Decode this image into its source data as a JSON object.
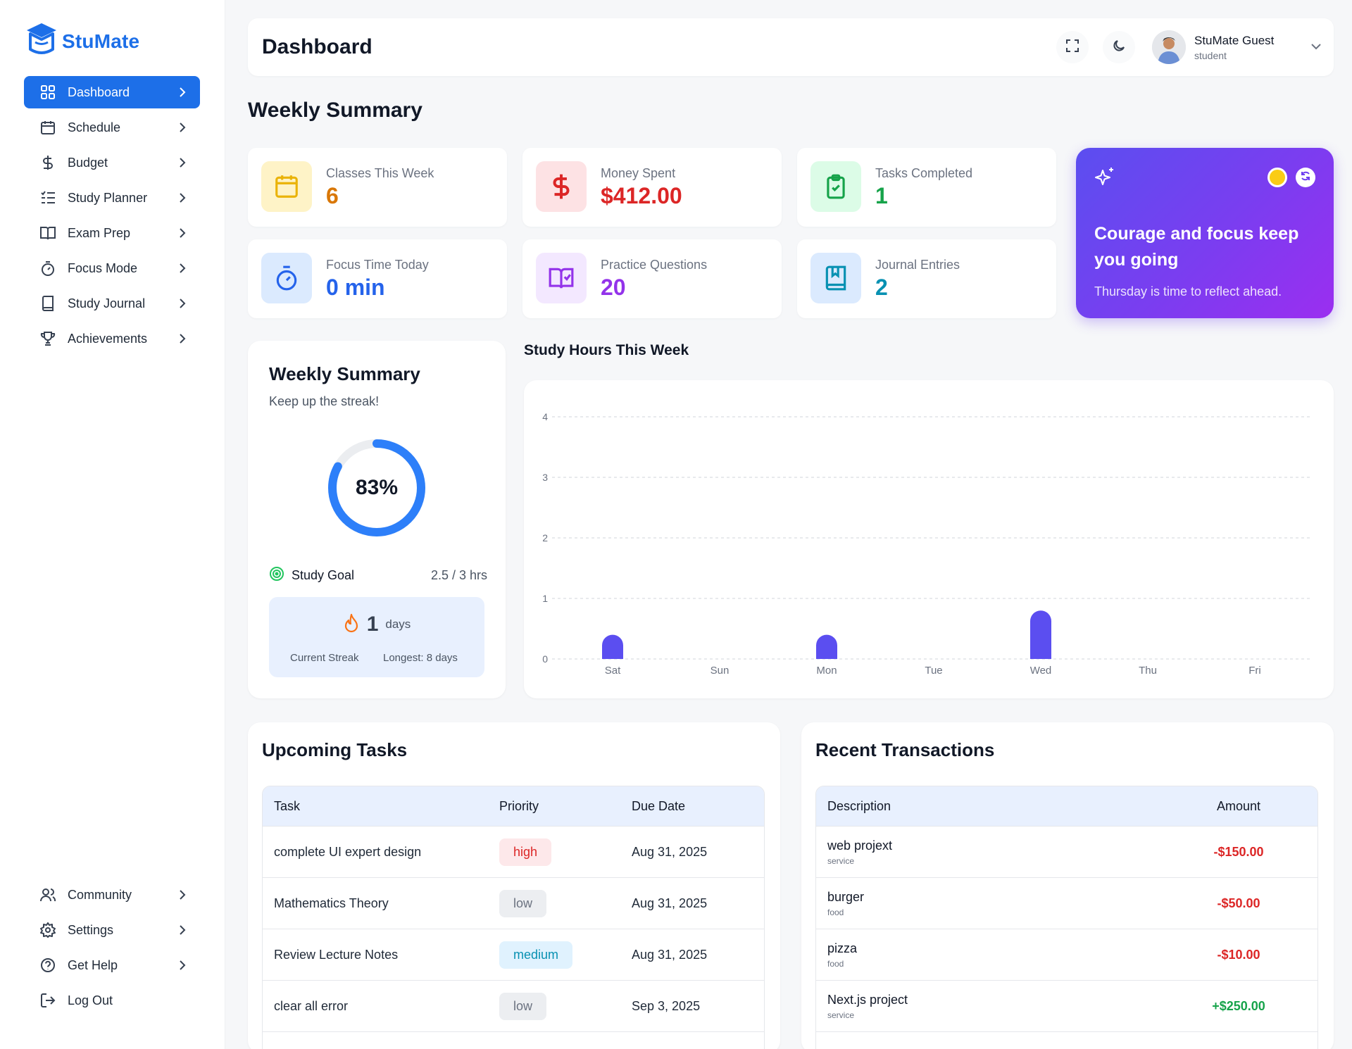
{
  "app": {
    "name": "StuMate",
    "brand_color": "#1d6fe8"
  },
  "sidebar": {
    "items": [
      {
        "label": "Dashboard",
        "icon": "grid-icon",
        "active": true
      },
      {
        "label": "Schedule",
        "icon": "calendar-icon"
      },
      {
        "label": "Budget",
        "icon": "dollar-icon"
      },
      {
        "label": "Study Planner",
        "icon": "list-check-icon"
      },
      {
        "label": "Exam Prep",
        "icon": "book-open-icon"
      },
      {
        "label": "Focus Mode",
        "icon": "timer-icon"
      },
      {
        "label": "Study Journal",
        "icon": "notebook-icon"
      },
      {
        "label": "Achievements",
        "icon": "trophy-icon"
      }
    ],
    "bottom_items": [
      {
        "label": "Community",
        "icon": "users-icon"
      },
      {
        "label": "Settings",
        "icon": "gear-icon"
      },
      {
        "label": "Get Help",
        "icon": "help-circle-icon"
      },
      {
        "label": "Log Out",
        "icon": "logout-icon"
      }
    ]
  },
  "header": {
    "title": "Dashboard",
    "user": {
      "name": "StuMate Guest",
      "role": "student"
    }
  },
  "summary": {
    "title": "Weekly Summary",
    "stats": [
      {
        "label": "Classes This Week",
        "value": "6",
        "icon": "calendar-icon",
        "color": "#eab308",
        "bg": "#fef3c7"
      },
      {
        "label": "Money Spent",
        "value": "$412.00",
        "icon": "dollar-icon",
        "color": "#dc2626",
        "bg": "#fde2e4"
      },
      {
        "label": "Tasks Completed",
        "value": "1",
        "icon": "clipboard-check-icon",
        "color": "#16a34a",
        "bg": "#dcfce7"
      },
      {
        "label": "Focus Time Today",
        "value": "0 min",
        "icon": "timer-icon",
        "color": "#2563eb",
        "bg": "#dbeafe"
      },
      {
        "label": "Practice Questions",
        "value": "20",
        "icon": "book-open-icon",
        "color": "#9333ea",
        "bg": "#f3e8ff"
      },
      {
        "label": "Journal Entries",
        "value": "2",
        "icon": "notebook-icon",
        "color": "#0891b2",
        "bg": "#dbeafe"
      }
    ],
    "quote": {
      "text": "Courage and focus keep you going",
      "subtitle": "Thursday is time to reflect ahead."
    }
  },
  "weekly_card": {
    "title": "Weekly Summary",
    "subtitle": "Keep up the streak!",
    "progress_percent": 83,
    "progress_label": "83%",
    "goal_label": "Study Goal",
    "goal_value": "2.5 / 3 hrs",
    "streak_value": "1",
    "streak_unit": "days",
    "current_streak_label": "Current Streak",
    "longest_label": "Longest: 8 days"
  },
  "chart_data": {
    "type": "bar",
    "title": "Study Hours This Week",
    "categories": [
      "Sat",
      "Sun",
      "Mon",
      "Tue",
      "Wed",
      "Thu",
      "Fri"
    ],
    "values": [
      0.4,
      0,
      0.4,
      0,
      0.8,
      0,
      0
    ],
    "ylim": [
      0,
      4
    ],
    "yticks": [
      0,
      1,
      2,
      3,
      4
    ],
    "grid": true,
    "bar_color": "#5b4ef0"
  },
  "tasks": {
    "title": "Upcoming Tasks",
    "columns": [
      "Task",
      "Priority",
      "Due Date"
    ],
    "rows": [
      {
        "task": "complete UI expert design",
        "priority": "high",
        "due": "Aug 31, 2025"
      },
      {
        "task": "Mathematics Theory",
        "priority": "low",
        "due": "Aug 31, 2025"
      },
      {
        "task": "Review Lecture Notes",
        "priority": "medium",
        "due": "Aug 31, 2025"
      },
      {
        "task": "clear all error",
        "priority": "low",
        "due": "Sep 3, 2025"
      }
    ]
  },
  "transactions": {
    "title": "Recent Transactions",
    "columns": [
      "Description",
      "Amount"
    ],
    "rows": [
      {
        "desc": "web projext",
        "category": "service",
        "amount": "-$150.00",
        "type": "neg"
      },
      {
        "desc": "burger",
        "category": "food",
        "amount": "-$50.00",
        "type": "neg"
      },
      {
        "desc": "pizza",
        "category": "food",
        "amount": "-$10.00",
        "type": "neg"
      },
      {
        "desc": "Next.js project",
        "category": "service",
        "amount": "+$250.00",
        "type": "pos"
      }
    ]
  }
}
